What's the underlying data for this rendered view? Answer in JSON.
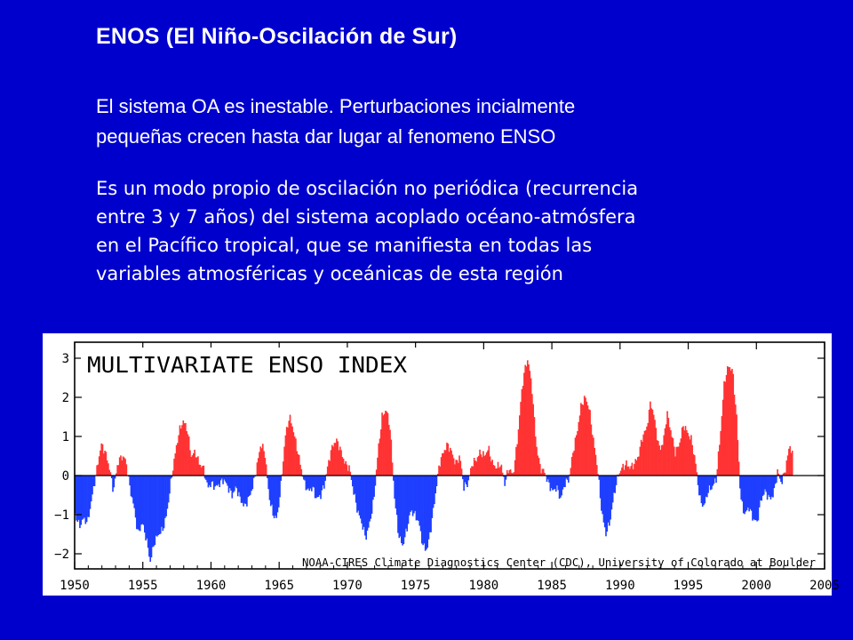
{
  "slide": {
    "title": "ENOS (El Niño-Oscilación de Sur)",
    "para1_line1": "El sistema OA es inestable. Perturbaciones incialmente",
    "para1_line2": "pequeñas crecen hasta dar lugar al fenomeno ENSO",
    "para2_lines": [
      "Es un modo propio de oscilación no periódica (recurrencia",
      "entre 3 y 7 años) del sistema acoplado océano-atmósfera",
      "en el Pacífico tropical, que se manifiesta en todas las",
      "variables atmosféricas y oceánicas de esta región"
    ]
  },
  "colors": {
    "background": "#0000CC",
    "positive": "#FF3333",
    "negative": "#1F3FFF"
  },
  "chart_data": {
    "type": "bar",
    "title": "MULTIVARIATE ENSO INDEX",
    "credit": "NOAA-CIRES Climate Diagnostics Center (CDC), University of Colorado at Boulder",
    "xlim": [
      1950,
      2005
    ],
    "ylim": [
      -2.5,
      3.2
    ],
    "x_ticks": [
      "1950",
      "1955",
      "1960",
      "1965",
      "1970",
      "1975",
      "1980",
      "1985",
      "1990",
      "1995",
      "2000",
      "2005"
    ],
    "y_ticks": [
      "3",
      "2",
      "1",
      "0",
      "−1",
      "−2"
    ],
    "series": [
      {
        "values": [
          [
            1950.0,
            -1.0
          ],
          [
            1950.3,
            -1.3
          ],
          [
            1950.6,
            -1.1
          ],
          [
            1950.9,
            -1.2
          ],
          [
            1951.2,
            -0.6
          ],
          [
            1951.4,
            -0.2
          ],
          [
            1951.6,
            0.2
          ],
          [
            1951.9,
            0.8
          ],
          [
            1952.2,
            0.6
          ],
          [
            1952.5,
            0.2
          ],
          [
            1952.8,
            -0.4
          ],
          [
            1953.1,
            0.3
          ],
          [
            1953.4,
            0.5
          ],
          [
            1953.7,
            0.4
          ],
          [
            1954.0,
            -0.3
          ],
          [
            1954.3,
            -0.8
          ],
          [
            1954.6,
            -1.5
          ],
          [
            1954.9,
            -1.2
          ],
          [
            1955.2,
            -1.6
          ],
          [
            1955.5,
            -2.2
          ],
          [
            1955.8,
            -1.7
          ],
          [
            1956.1,
            -1.5
          ],
          [
            1956.4,
            -1.4
          ],
          [
            1956.7,
            -1.0
          ],
          [
            1957.0,
            -0.2
          ],
          [
            1957.3,
            0.5
          ],
          [
            1957.6,
            1.1
          ],
          [
            1957.9,
            1.4
          ],
          [
            1958.2,
            1.2
          ],
          [
            1958.5,
            0.5
          ],
          [
            1958.8,
            0.6
          ],
          [
            1959.1,
            0.3
          ],
          [
            1959.4,
            0.2
          ],
          [
            1959.7,
            -0.3
          ],
          [
            1960.0,
            -0.2
          ],
          [
            1960.3,
            -0.3
          ],
          [
            1960.6,
            -0.2
          ],
          [
            1960.9,
            -0.1
          ],
          [
            1961.2,
            -0.3
          ],
          [
            1961.5,
            -0.5
          ],
          [
            1961.8,
            -0.3
          ],
          [
            1962.1,
            -0.6
          ],
          [
            1962.4,
            -0.8
          ],
          [
            1962.7,
            -0.6
          ],
          [
            1963.0,
            -0.3
          ],
          [
            1963.3,
            0.2
          ],
          [
            1963.6,
            0.8
          ],
          [
            1963.9,
            0.6
          ],
          [
            1964.2,
            -0.5
          ],
          [
            1964.5,
            -1.0
          ],
          [
            1964.8,
            -1.1
          ],
          [
            1965.1,
            -0.2
          ],
          [
            1965.4,
            1.0
          ],
          [
            1965.7,
            1.5
          ],
          [
            1965.9,
            1.3
          ],
          [
            1966.2,
            0.8
          ],
          [
            1966.5,
            0.3
          ],
          [
            1966.8,
            -0.2
          ],
          [
            1967.1,
            -0.4
          ],
          [
            1967.4,
            -0.3
          ],
          [
            1967.7,
            -0.6
          ],
          [
            1968.0,
            -0.5
          ],
          [
            1968.3,
            -0.2
          ],
          [
            1968.6,
            0.4
          ],
          [
            1968.9,
            0.8
          ],
          [
            1969.2,
            0.9
          ],
          [
            1969.5,
            0.6
          ],
          [
            1969.8,
            0.3
          ],
          [
            1970.1,
            0.2
          ],
          [
            1970.4,
            -0.4
          ],
          [
            1970.7,
            -0.9
          ],
          [
            1971.0,
            -1.2
          ],
          [
            1971.3,
            -1.6
          ],
          [
            1971.6,
            -1.2
          ],
          [
            1971.9,
            -0.6
          ],
          [
            1972.2,
            0.6
          ],
          [
            1972.5,
            1.5
          ],
          [
            1972.8,
            1.7
          ],
          [
            1973.1,
            1.2
          ],
          [
            1973.4,
            -0.5
          ],
          [
            1973.7,
            -1.5
          ],
          [
            1974.0,
            -1.8
          ],
          [
            1974.3,
            -1.4
          ],
          [
            1974.6,
            -0.9
          ],
          [
            1974.9,
            -1.0
          ],
          [
            1975.2,
            -1.2
          ],
          [
            1975.5,
            -1.8
          ],
          [
            1975.8,
            -1.9
          ],
          [
            1976.1,
            -1.3
          ],
          [
            1976.4,
            -0.5
          ],
          [
            1976.7,
            0.3
          ],
          [
            1977.0,
            0.6
          ],
          [
            1977.3,
            0.8
          ],
          [
            1977.6,
            0.6
          ],
          [
            1977.9,
            0.3
          ],
          [
            1978.2,
            0.5
          ],
          [
            1978.5,
            -0.3
          ],
          [
            1978.8,
            -0.2
          ],
          [
            1979.1,
            0.3
          ],
          [
            1979.4,
            0.4
          ],
          [
            1979.7,
            0.6
          ],
          [
            1980.0,
            0.5
          ],
          [
            1980.3,
            0.7
          ],
          [
            1980.6,
            0.3
          ],
          [
            1980.9,
            0.2
          ],
          [
            1981.2,
            0.3
          ],
          [
            1981.5,
            -0.2
          ],
          [
            1981.8,
            0.2
          ],
          [
            1982.1,
            0.0
          ],
          [
            1982.4,
            0.8
          ],
          [
            1982.7,
            2.0
          ],
          [
            1982.9,
            2.6
          ],
          [
            1983.2,
            3.0
          ],
          [
            1983.5,
            2.2
          ],
          [
            1983.8,
            0.8
          ],
          [
            1984.1,
            0.2
          ],
          [
            1984.4,
            0.1
          ],
          [
            1984.7,
            -0.2
          ],
          [
            1985.0,
            -0.4
          ],
          [
            1985.3,
            -0.3
          ],
          [
            1985.6,
            -0.6
          ],
          [
            1985.9,
            -0.2
          ],
          [
            1986.2,
            -0.1
          ],
          [
            1986.5,
            0.6
          ],
          [
            1986.8,
            1.1
          ],
          [
            1987.1,
            1.8
          ],
          [
            1987.4,
            2.0
          ],
          [
            1987.7,
            1.7
          ],
          [
            1988.0,
            0.9
          ],
          [
            1988.3,
            0.2
          ],
          [
            1988.6,
            -0.9
          ],
          [
            1988.9,
            -1.5
          ],
          [
            1989.2,
            -1.2
          ],
          [
            1989.5,
            -0.5
          ],
          [
            1989.8,
            0.0
          ],
          [
            1990.1,
            0.2
          ],
          [
            1990.4,
            0.3
          ],
          [
            1990.7,
            0.2
          ],
          [
            1991.0,
            0.3
          ],
          [
            1991.3,
            0.5
          ],
          [
            1991.6,
            1.0
          ],
          [
            1991.9,
            1.2
          ],
          [
            1992.2,
            1.9
          ],
          [
            1992.5,
            1.4
          ],
          [
            1992.8,
            0.7
          ],
          [
            1993.1,
            0.8
          ],
          [
            1993.4,
            1.6
          ],
          [
            1993.7,
            1.1
          ],
          [
            1994.0,
            0.6
          ],
          [
            1994.3,
            0.8
          ],
          [
            1994.6,
            1.3
          ],
          [
            1994.9,
            1.1
          ],
          [
            1995.2,
            0.9
          ],
          [
            1995.5,
            0.3
          ],
          [
            1995.8,
            -0.6
          ],
          [
            1996.1,
            -0.8
          ],
          [
            1996.4,
            -0.4
          ],
          [
            1996.7,
            -0.3
          ],
          [
            1997.0,
            -0.1
          ],
          [
            1997.3,
            1.0
          ],
          [
            1997.6,
            2.4
          ],
          [
            1997.9,
            2.8
          ],
          [
            1998.2,
            2.7
          ],
          [
            1998.5,
            1.5
          ],
          [
            1998.8,
            -0.6
          ],
          [
            1999.1,
            -1.0
          ],
          [
            1999.4,
            -0.8
          ],
          [
            1999.7,
            -1.1
          ],
          [
            2000.0,
            -1.2
          ],
          [
            2000.3,
            -0.6
          ],
          [
            2000.6,
            -0.4
          ],
          [
            2000.9,
            -0.6
          ],
          [
            2001.2,
            -0.5
          ],
          [
            2001.5,
            0.1
          ],
          [
            2001.8,
            -0.2
          ],
          [
            2002.1,
            0.2
          ],
          [
            2002.4,
            0.8
          ],
          [
            2002.6,
            0.5
          ]
        ]
      }
    ],
    "grid": false,
    "legend": "none"
  }
}
